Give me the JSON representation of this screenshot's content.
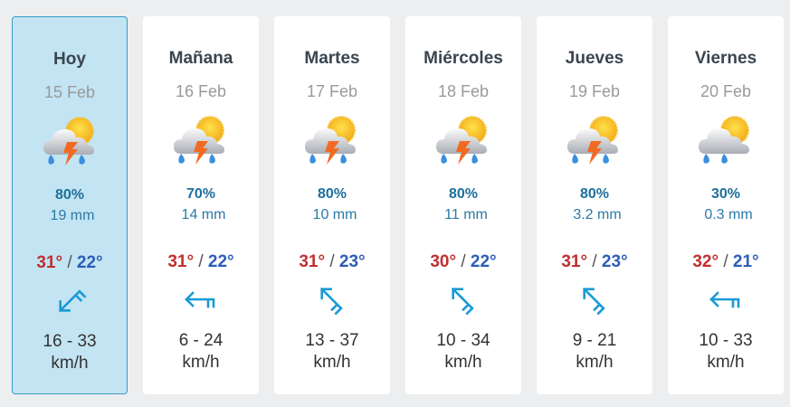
{
  "colors": {
    "accent": "#3a9cc8",
    "today_bg": "#c3e4f2",
    "high": "#c0302f",
    "low": "#2d5db8",
    "rain": "#1d6f9c",
    "wind_arrow": "#1a9ad6"
  },
  "days": [
    {
      "name": "Hoy",
      "date": "15 Feb",
      "icon": "storm-sun-icon",
      "chance": "80%",
      "rain": "19 mm",
      "high": "31°",
      "low": "22°",
      "sep": "/",
      "wind_dir": "southwest",
      "speed": "16 - 33",
      "unit": "km/h"
    },
    {
      "name": "Mañana",
      "date": "16 Feb",
      "icon": "storm-sun-icon",
      "chance": "70%",
      "rain": "14 mm",
      "high": "31°",
      "low": "22°",
      "sep": "/",
      "wind_dir": "west",
      "speed": "6 - 24",
      "unit": "km/h"
    },
    {
      "name": "Martes",
      "date": "17 Feb",
      "icon": "storm-sun-icon",
      "chance": "80%",
      "rain": "10 mm",
      "high": "31°",
      "low": "23°",
      "sep": "/",
      "wind_dir": "northwest",
      "speed": "13 - 37",
      "unit": "km/h"
    },
    {
      "name": "Miércoles",
      "date": "18 Feb",
      "icon": "storm-sun-icon",
      "chance": "80%",
      "rain": "11 mm",
      "high": "30°",
      "low": "22°",
      "sep": "/",
      "wind_dir": "northwest",
      "speed": "10 - 34",
      "unit": "km/h"
    },
    {
      "name": "Jueves",
      "date": "19 Feb",
      "icon": "storm-sun-icon",
      "chance": "80%",
      "rain": "3.2 mm",
      "high": "31°",
      "low": "23°",
      "sep": "/",
      "wind_dir": "northwest",
      "speed": "9 - 21",
      "unit": "km/h"
    },
    {
      "name": "Viernes",
      "date": "20 Feb",
      "icon": "rain-sun-icon",
      "chance": "30%",
      "rain": "0.3 mm",
      "high": "32°",
      "low": "21°",
      "sep": "/",
      "wind_dir": "west",
      "speed": "10 - 33",
      "unit": "km/h"
    }
  ]
}
